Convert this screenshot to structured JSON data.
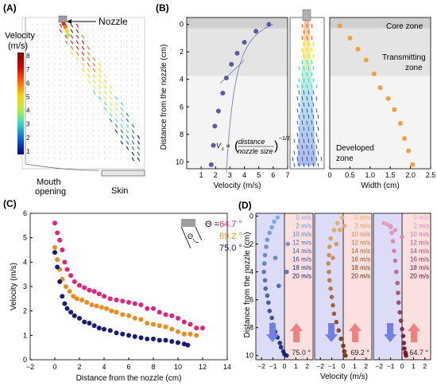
{
  "panels": {
    "a": {
      "label": "(A)",
      "nozzle_label": "Nozzle",
      "colorbar_title_1": "Velocity",
      "colorbar_title_2": "(m/s)",
      "colorbar_ticks": [
        "8",
        "7",
        "6",
        "5",
        "4",
        "3",
        "2",
        "1"
      ],
      "mouth_label_1": "Mouth",
      "mouth_label_2": "opening",
      "skin_label": "Skin",
      "colors": {
        "colorbar": [
          "#7a0000",
          "#d40000",
          "#ff5a00",
          "#ffd000",
          "#b8f040",
          "#30d8c8",
          "#1060d8",
          "#000080"
        ]
      }
    },
    "b": {
      "label": "(B)",
      "ylabel": "Distance from the nozzle (cm)",
      "zone_core": "Core zone",
      "zone_transmitting_1": "Transmitting",
      "zone_transmitting_2": "zone",
      "zone_developed_1": "Developed",
      "zone_developed_2": "zone",
      "formula_left": "V",
      "formula_sub": "c",
      "formula_prop": "∝",
      "formula_num": "distance",
      "formula_den": "nozzle size",
      "formula_exp": "−1/2"
    },
    "c": {
      "label": "(C)",
      "legend_symbol": "Θ =",
      "legend_theta": "Θ"
    },
    "d": {
      "label": "(D)",
      "ylabel": "Distance from the nozzle (cm)",
      "speed_labels": [
        "0 m/s",
        "2 m/s",
        "10 m/s",
        "12 m/s",
        "14 m/s",
        "16 m/s",
        "18 m/s",
        "20 m/s"
      ]
    }
  },
  "chart_data": [
    {
      "id": "B-velocity",
      "type": "scatter",
      "xlabel": "Velocity (m/s)",
      "xlim": [
        0,
        7
      ],
      "xticks": [
        1,
        2,
        3,
        4,
        5,
        6,
        7
      ],
      "ylim": [
        10.5,
        -0.5
      ],
      "yticks": [
        0,
        2,
        4,
        6,
        8,
        10
      ],
      "shaded": [
        {
          "from": -0.5,
          "to": 0.3,
          "color": "#d0d0d0"
        },
        {
          "from": 0.3,
          "to": 3.75,
          "color": "#e4e4e4"
        },
        {
          "from": 3.75,
          "to": 10.5,
          "color": "#f4f4f4"
        }
      ],
      "series": [
        {
          "color": "#5b5ba5",
          "x": [
            5.7,
            4.8,
            4.0,
            3.5,
            3.1,
            2.75,
            2.5,
            2.2,
            1.95,
            1.85,
            1.7
          ],
          "y": [
            0,
            0.5,
            1.3,
            2.1,
            2.9,
            3.9,
            5.0,
            6.3,
            7.4,
            8.8,
            10.2
          ]
        }
      ]
    },
    {
      "id": "B-width",
      "type": "scatter",
      "xlabel": "Width (cm)",
      "xlim": [
        0,
        2.5
      ],
      "xticks": [
        0,
        0.5,
        1.0,
        1.5,
        2.0,
        2.5
      ],
      "ylim": [
        10.5,
        -0.5
      ],
      "series": [
        {
          "color": "#f0a040",
          "x": [
            0.25,
            0.5,
            0.7,
            0.9,
            1.1,
            1.25,
            1.45,
            1.6,
            1.75,
            1.85,
            1.95,
            2.05
          ],
          "y": [
            0.1,
            1.0,
            1.8,
            2.6,
            3.6,
            4.6,
            5.4,
            6.2,
            7.2,
            8.3,
            9.2,
            10.2
          ]
        }
      ]
    },
    {
      "id": "C",
      "type": "scatter",
      "xlabel": "Distance from the nozzle (cm)",
      "ylabel": "Velocity (m/s)",
      "xlim": [
        -2,
        14
      ],
      "xticks": [
        -2,
        0,
        2,
        4,
        6,
        8,
        10,
        12,
        14
      ],
      "ylim": [
        0,
        6
      ],
      "yticks": [
        0,
        1,
        2,
        3,
        4,
        5,
        6
      ],
      "series": [
        {
          "name": "64.7 °",
          "color": "#e8207a",
          "x": [
            0.0,
            0.2,
            0.4,
            0.6,
            0.8,
            1.0,
            1.3,
            1.6,
            2.0,
            2.4,
            2.8,
            3.2,
            3.6,
            4.0,
            4.5,
            5.0,
            5.5,
            6.0,
            6.5,
            7.0,
            7.5,
            8.0,
            8.5,
            9.0,
            9.5,
            10.0,
            10.5,
            11.0,
            11.5,
            12.0
          ],
          "y": [
            5.6,
            5.2,
            4.9,
            4.5,
            4.0,
            3.7,
            3.45,
            3.2,
            3.05,
            2.95,
            2.85,
            2.8,
            2.7,
            2.6,
            2.5,
            2.45,
            2.4,
            2.35,
            2.3,
            2.25,
            2.1,
            2.1,
            1.95,
            1.85,
            1.8,
            1.7,
            1.55,
            1.45,
            1.3,
            1.3
          ]
        },
        {
          "name": "69.2 °",
          "color": "#ee8a1a",
          "x": [
            0.0,
            0.2,
            0.4,
            0.6,
            0.9,
            1.2,
            1.5,
            1.8,
            2.2,
            2.6,
            3.0,
            3.4,
            3.8,
            4.2,
            4.6,
            5.0,
            5.5,
            6.0,
            6.5,
            7.0,
            7.5,
            8.0,
            8.5,
            9.0,
            9.5,
            10.0,
            10.5,
            11.0,
            11.5
          ],
          "y": [
            4.6,
            4.1,
            3.7,
            3.3,
            3.0,
            2.8,
            2.6,
            2.5,
            2.45,
            2.35,
            2.25,
            2.2,
            2.15,
            2.1,
            2.0,
            1.95,
            1.85,
            1.8,
            1.7,
            1.65,
            1.5,
            1.45,
            1.4,
            1.35,
            1.25,
            1.15,
            1.05,
            1.05,
            1.0
          ]
        },
        {
          "name": "75.0 °",
          "color": "#1a1a7a",
          "x": [
            0.0,
            0.2,
            0.4,
            0.6,
            0.8,
            1.0,
            1.3,
            1.6,
            2.0,
            2.4,
            2.8,
            3.2,
            3.6,
            4.0,
            4.5,
            5.0,
            5.5,
            6.0,
            6.5,
            7.0,
            7.5,
            8.0,
            8.5,
            9.0,
            9.5,
            10.0,
            10.5,
            10.8
          ],
          "y": [
            4.4,
            3.8,
            3.2,
            2.6,
            2.3,
            2.1,
            1.95,
            1.8,
            1.7,
            1.55,
            1.5,
            1.4,
            1.3,
            1.25,
            1.2,
            1.1,
            1.05,
            1.0,
            0.95,
            0.9,
            0.85,
            0.85,
            0.8,
            0.8,
            0.75,
            0.7,
            0.65,
            0.6
          ]
        }
      ]
    },
    {
      "id": "D",
      "type": "scatter",
      "xlabel": "Velocity (m/s)",
      "ylabel": "Distance from the nozzle (cm)",
      "ylim": [
        10.3,
        -0.2
      ],
      "yticks": [
        0,
        2,
        4,
        6,
        8,
        10
      ],
      "subplots": [
        {
          "angle_label": "75.0 °",
          "xlim": [
            -2.5,
            2.5
          ],
          "xticks": [
            -2,
            -1,
            0,
            1,
            2
          ],
          "dark_color": "#0a1a6a",
          "light_color": "#7fa8e0",
          "points": {
            "x": [
              -0.6,
              -0.9,
              -1.1,
              -1.3,
              -1.5,
              -1.6,
              -1.7,
              -1.75,
              -1.8,
              -1.7,
              -1.65,
              -1.5,
              -1.4,
              -1.3,
              -1.1,
              -1.0,
              -0.8,
              -0.6,
              -0.4,
              -0.3,
              -0.1,
              0.0,
              0.2,
              0.3,
              0.2,
              -0.5,
              -0.8
            ],
            "y": [
              0.1,
              0.4,
              0.8,
              1.2,
              1.7,
              2.2,
              2.8,
              3.4,
              4.0,
              4.6,
              5.2,
              5.7,
              6.2,
              6.8,
              7.3,
              7.8,
              8.3,
              8.7,
              9.1,
              9.4,
              9.7,
              9.9,
              10.0,
              2.0,
              4.0,
              5.0,
              3.0
            ]
          }
        },
        {
          "angle_label": "69.2 °",
          "xlim": [
            -2.5,
            2.5
          ],
          "xticks": [
            -2,
            -1,
            0,
            1,
            2
          ],
          "dark_color": "#6a2a00",
          "light_color": "#f0b060",
          "points": {
            "x": [
              -0.1,
              -0.5,
              -0.8,
              -1.1,
              -1.2,
              -1.25,
              -1.3,
              -1.25,
              -1.2,
              -1.1,
              -1.0,
              -0.9,
              -0.8,
              -0.6,
              -0.4,
              -0.2,
              0.0,
              0.1,
              0.2,
              -0.3,
              -0.6,
              -0.9,
              0.1
            ],
            "y": [
              0.1,
              0.5,
              1.0,
              1.6,
              2.2,
              2.8,
              3.4,
              4.0,
              4.6,
              5.2,
              5.8,
              6.4,
              7.0,
              7.6,
              8.2,
              8.8,
              9.3,
              9.7,
              10.0,
              1.0,
              2.0,
              3.0,
              0.7
            ]
          }
        },
        {
          "angle_label": "64.7 °",
          "xlim": [
            -2.5,
            2.5
          ],
          "xticks": [
            -2,
            -1,
            0,
            1,
            2
          ],
          "dark_color": "#6a0020",
          "light_color": "#f0a0c8",
          "points": {
            "x": [
              -1.6,
              -1.3,
              -1.0,
              -0.9,
              -0.8,
              -0.7,
              -0.6,
              -0.5,
              -0.4,
              -0.35,
              -0.3,
              -0.2,
              -0.1,
              0.0,
              0.1,
              0.15,
              0.2,
              0.3,
              0.35,
              -1.0,
              -0.6,
              0.0
            ],
            "y": [
              0.5,
              0.6,
              0.8,
              1.2,
              1.8,
              2.5,
              3.2,
              4.0,
              4.8,
              5.5,
              6.2,
              6.9,
              7.5,
              8.1,
              8.6,
              9.1,
              9.5,
              9.8,
              10.0,
              0.7,
              1.0,
              1.5
            ]
          }
        }
      ]
    }
  ]
}
